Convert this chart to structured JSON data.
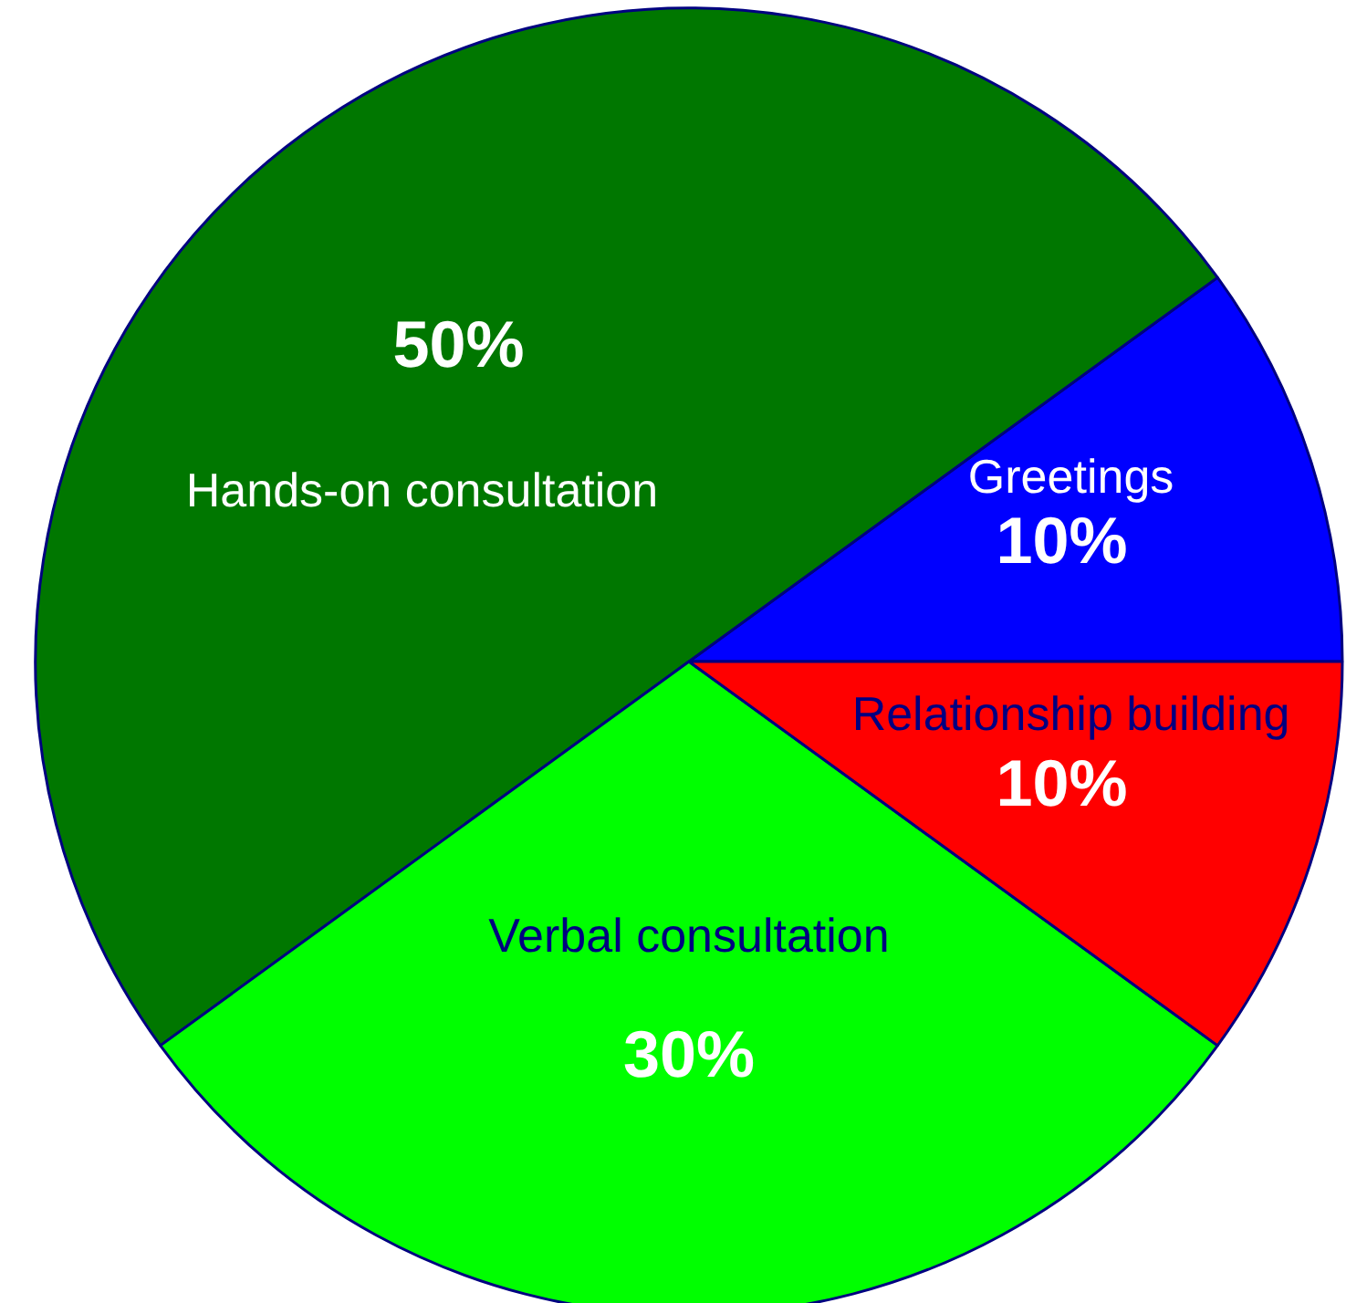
{
  "chart_data": {
    "type": "pie",
    "categories": [
      "Greetings",
      "Hands-on consultation",
      "Verbal consultation",
      "Relationship building"
    ],
    "values": [
      10,
      50,
      30,
      10
    ],
    "colors": [
      "#0000ff",
      "#007700",
      "#00ff00",
      "#ff0000"
    ],
    "value_labels": [
      "10%",
      "50%",
      "30%",
      "10%"
    ]
  }
}
